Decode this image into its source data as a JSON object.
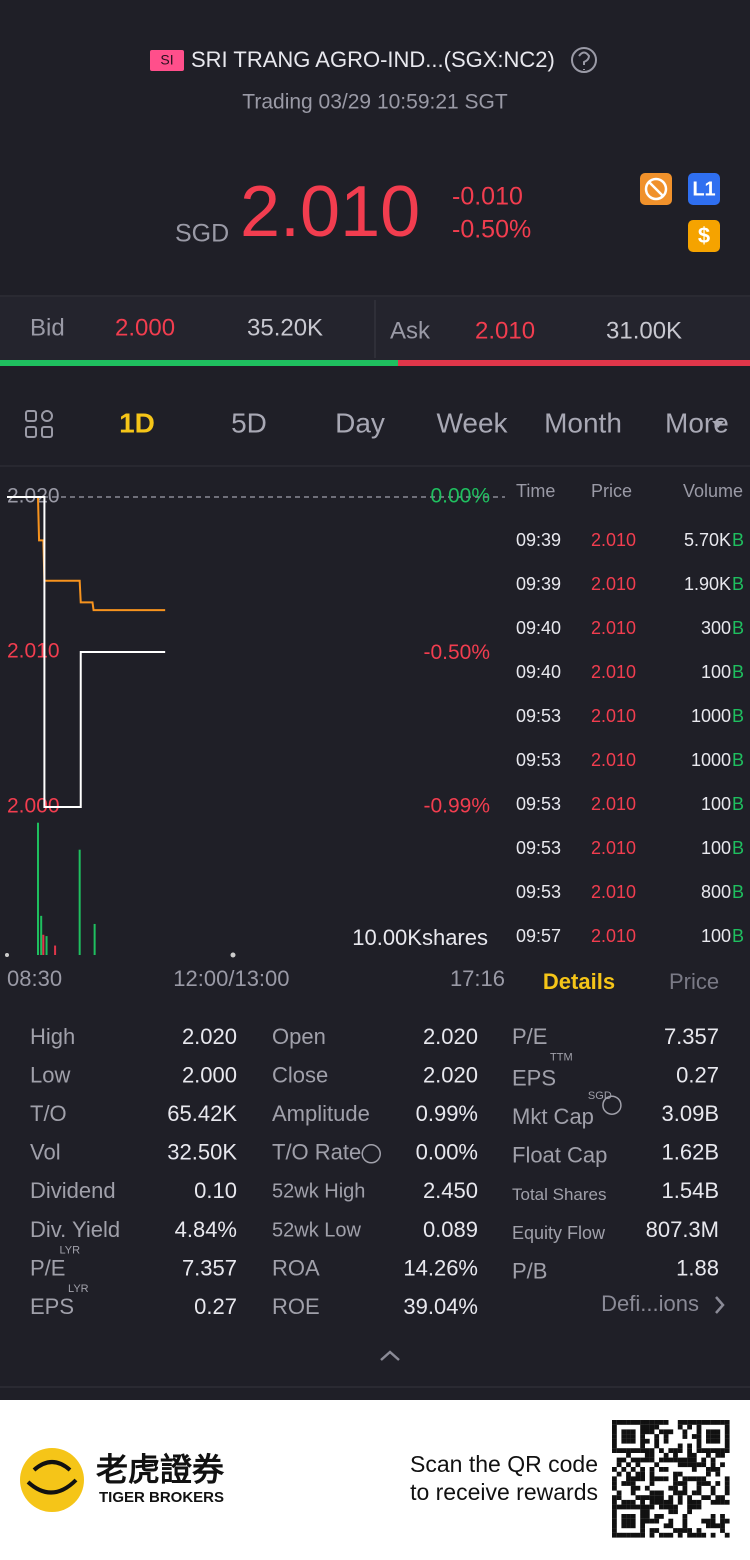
{
  "header": {
    "badge": "SI",
    "title": "SRI TRANG AGRO-IND...(SGX:NC2)",
    "status": "Trading 03/29 10:59:21 SGT"
  },
  "quote": {
    "currency": "SGD",
    "price": "2.010",
    "change": "-0.010",
    "change_pct": "-0.50%",
    "badges": [
      "L1",
      "$"
    ]
  },
  "bid_ask": {
    "bid_label": "Bid",
    "bid_price": "2.000",
    "bid_size": "35.20K",
    "ask_label": "Ask",
    "ask_price": "2.010",
    "ask_size": "31.00K"
  },
  "tabs": [
    "1D",
    "5D",
    "Day",
    "Week",
    "Month",
    "More"
  ],
  "chart_data": {
    "type": "line",
    "xlim": [
      0,
      466
    ],
    "xticks": [
      {
        "value": 0,
        "label": "08:30"
      },
      {
        "value": 210,
        "label": "12:00/13:00"
      },
      {
        "value": 466,
        "label": "17:16"
      }
    ],
    "ylim": [
      2.0,
      2.02
    ],
    "yticks": [
      {
        "value": 2.02,
        "label": "2.020"
      },
      {
        "value": 2.01,
        "label": "2.010"
      },
      {
        "value": 2.0,
        "label": "2.000"
      }
    ],
    "y2lim": [
      -0.99,
      0
    ],
    "y2ticks": [
      {
        "value": 0,
        "label": "0.00%"
      },
      {
        "value": -0.5,
        "label": "-0.50%"
      },
      {
        "value": -0.99,
        "label": "-0.99%"
      }
    ],
    "reference_line": 2.02,
    "series": [
      {
        "color": "#f7931e",
        "x": [
          0,
          29,
          30,
          34,
          35,
          68,
          69,
          80,
          81,
          148
        ],
        "values": [
          2.02,
          2.02,
          2.0172,
          2.0172,
          2.0146,
          2.0146,
          2.0132,
          2.0132,
          2.0127,
          2.0127
        ]
      },
      {
        "color": "#ffffff",
        "x": [
          0,
          35,
          35,
          69,
          69,
          148
        ],
        "values": [
          2.02,
          2.02,
          2.0,
          2.0,
          2.01,
          2.01
        ]
      }
    ],
    "volume": {
      "label": "10.00Kshares",
      "ylim": [
        0,
        10000
      ],
      "x": [
        29,
        32,
        34,
        37,
        45,
        68,
        82
      ],
      "values": [
        9800,
        2900,
        1500,
        1400,
        700,
        7800,
        2300
      ],
      "colors": [
        "#1fbf5f",
        "#1fbf5f",
        "#e0364a",
        "#1fbf5f",
        "#e0364a",
        "#1fbf5f",
        "#1fbf5f"
      ]
    }
  },
  "trades": {
    "header": [
      "Time",
      "Price",
      "Volume"
    ],
    "rows": [
      [
        "09:39",
        "2.010",
        "5.70K",
        "B"
      ],
      [
        "09:39",
        "2.010",
        "1.90K",
        "B"
      ],
      [
        "09:40",
        "2.010",
        "300",
        "B"
      ],
      [
        "09:40",
        "2.010",
        "100",
        "B"
      ],
      [
        "09:53",
        "2.010",
        "1000",
        "B"
      ],
      [
        "09:53",
        "2.010",
        "1000",
        "B"
      ],
      [
        "09:53",
        "2.010",
        "100",
        "B"
      ],
      [
        "09:53",
        "2.010",
        "100",
        "B"
      ],
      [
        "09:53",
        "2.010",
        "800",
        "B"
      ],
      [
        "09:57",
        "2.010",
        "100",
        "B"
      ]
    ]
  },
  "detail_tabs": [
    "Details",
    "Price"
  ],
  "stats": [
    [
      {
        "label": "High",
        "value": "2.020"
      },
      {
        "label": "Low",
        "value": "2.000"
      },
      {
        "label": "T/O",
        "value": "65.42K"
      },
      {
        "label": "Vol",
        "value": "32.50K"
      },
      {
        "label": "Dividend",
        "value": "0.10"
      },
      {
        "label": "Div. Yield",
        "value": "4.84%"
      },
      {
        "label": "P/E",
        "sup": "LYR",
        "value": "7.357"
      },
      {
        "label": "EPS",
        "sup": "LYR",
        "value": "0.27"
      }
    ],
    [
      {
        "label": "Open",
        "value": "2.020"
      },
      {
        "label": "Close",
        "value": "2.020"
      },
      {
        "label": "Amplitude",
        "value": "0.99%"
      },
      {
        "label": "T/O Rate",
        "value": "0.00%"
      },
      {
        "label": "52wk High",
        "value": "2.450"
      },
      {
        "label": "52wk Low",
        "value": "0.089"
      },
      {
        "label": "ROA",
        "value": "14.26%"
      },
      {
        "label": "ROE",
        "value": "39.04%"
      }
    ],
    [
      {
        "label": "P/E",
        "value": "7.357"
      },
      {
        "label": "EPS",
        "sup": "TTM",
        "value": "0.27"
      },
      {
        "label": "Mkt Cap",
        "sup": "SGD",
        "value": "3.09B"
      },
      {
        "label": "Float Cap",
        "value": "1.62B"
      },
      {
        "label": "Total Shares",
        "value": "1.54B"
      },
      {
        "label": "Equity Flow",
        "value": "807.3M"
      },
      {
        "label": "P/B",
        "value": "1.88"
      }
    ]
  ],
  "link": "Defi...ions",
  "footer": {
    "brand_cn": "老虎證券",
    "brand_en": "TIGER BROKERS",
    "scan_line1": "Scan the QR code",
    "scan_line2": "to receive rewards"
  }
}
